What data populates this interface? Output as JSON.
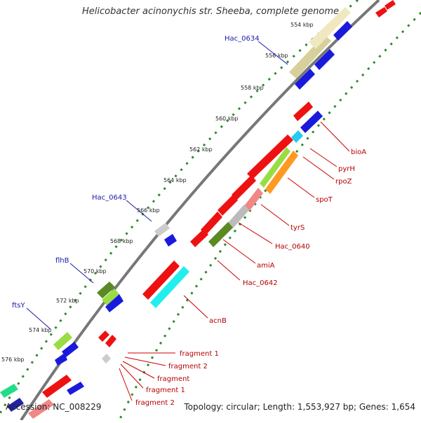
{
  "title": "Helicobacter acinonychis str. Sheeba, complete genome",
  "footer": {
    "accession": "Accession: NC_008229",
    "summary": "Topology: circular; Length: 1,553,927 bp; Genes: 1,654"
  },
  "ticks": [
    "554 kbp",
    "556 kbp",
    "558 kbp",
    "560 kbp",
    "562 kbp",
    "564 kbp",
    "566 kbp",
    "568 kbp",
    "570 kbp",
    "572 kbp",
    "574 kbp",
    "576 kbp"
  ],
  "left_labels": [
    "Hac_0634",
    "Hac_0643",
    "flhB",
    "ftsY"
  ],
  "right_labels": [
    "bioA",
    "pyrH",
    "rpoZ",
    "spoT",
    "tyrS",
    "Hac_0640",
    "amiA",
    "Hac_0642",
    "acnB",
    "fragment 1",
    "fragment 2",
    "fragment",
    "fragment 1",
    "fragment 2"
  ],
  "colors": {
    "cds_red": "#ee1111",
    "cds_blue": "#1a1add",
    "backbone": "#777777",
    "gc_dots": "#2a8a2a",
    "label_blue": "#1a1aaa",
    "label_red": "#b40000",
    "tan": "#d8d09a",
    "cyan": "#22ccee",
    "light_green": "#99dd44",
    "dark_green": "#5a8a22",
    "orange": "#ff9922",
    "pink": "#f08888",
    "grey": "#bbbbbb"
  }
}
